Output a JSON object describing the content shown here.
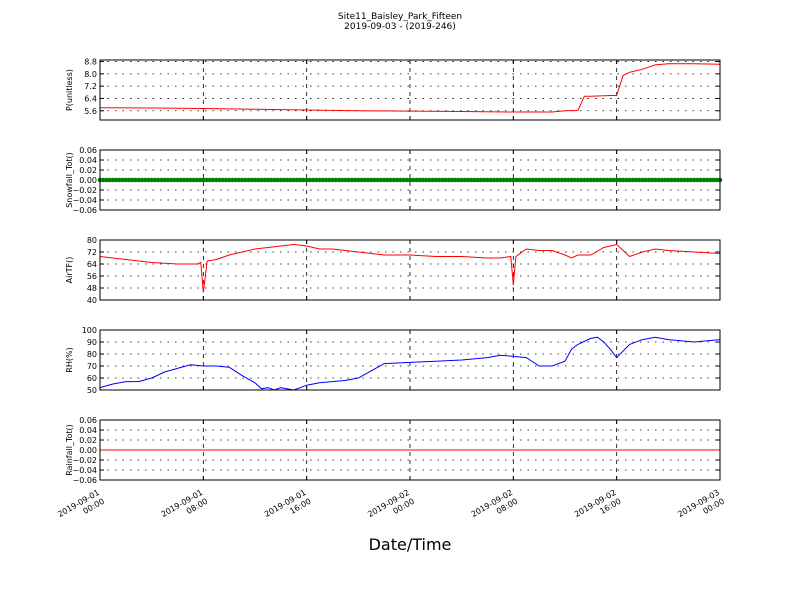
{
  "figure": {
    "title_line1": "Site11_Baisley_Park_Fifteen",
    "title_line2": "2019-09-03 - (2019-246)",
    "xlabel": "Date/Time"
  },
  "x_ticks": [
    {
      "t": 0,
      "l1": "2019-09-01",
      "l2": "00:00"
    },
    {
      "t": 8,
      "l1": "2019-09-01",
      "l2": "08:00"
    },
    {
      "t": 16,
      "l1": "2019-09-01",
      "l2": "16:00"
    },
    {
      "t": 24,
      "l1": "2019-09-02",
      "l2": "00:00"
    },
    {
      "t": 32,
      "l1": "2019-09-02",
      "l2": "08:00"
    },
    {
      "t": 40,
      "l1": "2019-09-02",
      "l2": "16:00"
    },
    {
      "t": 48,
      "l1": "2019-09-03",
      "l2": "00:00"
    }
  ],
  "chart_data": [
    {
      "type": "line",
      "ylabel": "P(unitless)",
      "ylim": [
        5.0,
        8.9
      ],
      "yticks": [
        5.6,
        6.4,
        7.2,
        8.0,
        8.8
      ],
      "ytick_labels": [
        "5.6",
        "6.4",
        "7.2",
        "8.0",
        "8.8"
      ],
      "color": "#ff0000",
      "marker": false,
      "x": [
        0,
        4,
        8,
        12,
        16,
        20,
        24,
        28,
        32,
        35,
        36,
        37,
        37.5,
        38,
        39,
        40,
        40.5,
        41,
        42,
        43,
        44,
        46,
        48
      ],
      "y": [
        5.8,
        5.78,
        5.75,
        5.7,
        5.65,
        5.6,
        5.58,
        5.55,
        5.52,
        5.52,
        5.6,
        5.62,
        6.55,
        6.55,
        6.57,
        6.6,
        7.9,
        8.1,
        8.3,
        8.58,
        8.65,
        8.65,
        8.63
      ]
    },
    {
      "type": "line",
      "ylabel": "Snowfall_Tot()",
      "ylim": [
        -0.06,
        0.06
      ],
      "yticks": [
        -0.06,
        -0.04,
        -0.02,
        0.0,
        0.02,
        0.04,
        0.06
      ],
      "ytick_labels": [
        "−0.06",
        "−0.04",
        "−0.02",
        "0.00",
        "0.02",
        "0.04",
        "0.06"
      ],
      "color": "#008000",
      "marker": true,
      "x": [
        0,
        48
      ],
      "y": [
        0,
        0
      ]
    },
    {
      "type": "line",
      "ylabel": "AirTF()",
      "ylim": [
        40,
        80
      ],
      "yticks": [
        40,
        48,
        56,
        64,
        72,
        80
      ],
      "ytick_labels": [
        "40",
        "48",
        "56",
        "64",
        "72",
        "80"
      ],
      "color": "#ff0000",
      "marker": false,
      "x": [
        0,
        2,
        4,
        6,
        7.5,
        7.8,
        8,
        8.3,
        9,
        10,
        11,
        12,
        14,
        15,
        16,
        17,
        18,
        20,
        22,
        24,
        26,
        28,
        30,
        31,
        31.8,
        32,
        32.2,
        33,
        34,
        35,
        36,
        36.5,
        37,
        38,
        39,
        40,
        41,
        42,
        43,
        44,
        46,
        48
      ],
      "y": [
        69,
        67,
        65,
        64,
        64,
        65,
        45,
        66,
        67,
        70,
        72,
        74,
        76,
        77,
        76,
        74,
        74,
        72,
        70,
        70,
        69,
        69,
        68,
        68,
        69,
        50,
        69,
        74,
        73,
        73,
        70,
        68,
        70,
        70,
        75,
        77,
        69,
        72,
        74,
        73,
        72,
        71
      ]
    },
    {
      "type": "line",
      "ylabel": "RH(%)",
      "ylim": [
        50,
        100
      ],
      "yticks": [
        50,
        60,
        70,
        80,
        90,
        100
      ],
      "ytick_labels": [
        "50",
        "60",
        "70",
        "80",
        "90",
        "100"
      ],
      "color": "#0000ff",
      "marker": false,
      "x": [
        0,
        1,
        2,
        3,
        4,
        5,
        6,
        7,
        8,
        9,
        10,
        11,
        12,
        12.5,
        13,
        13.5,
        14,
        15,
        16,
        17,
        18,
        19,
        20,
        21,
        22,
        24,
        26,
        28,
        30,
        31,
        32,
        33,
        34,
        35,
        36,
        36.5,
        37,
        38,
        38.5,
        39,
        39.5,
        40,
        41,
        42,
        43,
        44,
        46,
        48
      ],
      "y": [
        52,
        55,
        57,
        57,
        60,
        65,
        68,
        71,
        70,
        70,
        69,
        62,
        56,
        51,
        52,
        50,
        52,
        50,
        54,
        56,
        57,
        58,
        60,
        66,
        72,
        73,
        74,
        75,
        77,
        79,
        78,
        77,
        70,
        70,
        74,
        84,
        88,
        93,
        94,
        90,
        84,
        77,
        88,
        92,
        94,
        92,
        90,
        92
      ]
    },
    {
      "type": "line",
      "ylabel": "Rainfall_Tot()",
      "ylim": [
        -0.06,
        0.06
      ],
      "yticks": [
        -0.06,
        -0.04,
        -0.02,
        0.0,
        0.02,
        0.04,
        0.06
      ],
      "ytick_labels": [
        "−0.06",
        "−0.04",
        "−0.02",
        "0.00",
        "0.02",
        "0.04",
        "0.06"
      ],
      "color": "#ff0000",
      "marker": false,
      "x": [
        0,
        48
      ],
      "y": [
        0,
        0
      ]
    }
  ]
}
